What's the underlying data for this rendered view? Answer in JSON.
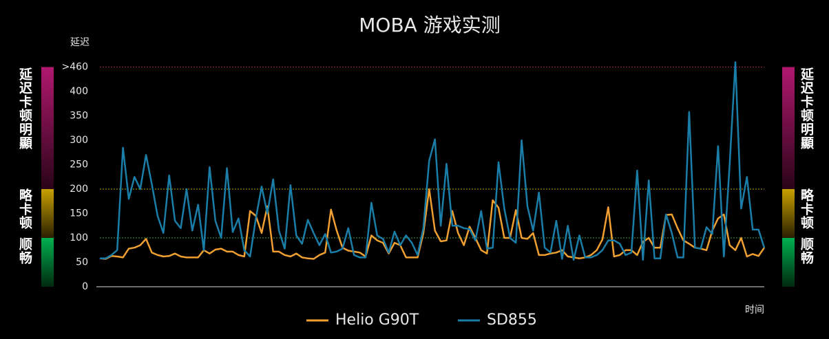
{
  "chart_data": {
    "type": "line",
    "title": "MOBA 游戏实测",
    "y_label": "延迟",
    "x_label": "时间",
    "side_labels": [
      "延迟卡顿明顯",
      "略卡顿",
      "顺畅"
    ],
    "ylim": [
      0,
      460
    ],
    "yticks": [
      0,
      50,
      100,
      150,
      200,
      250,
      300,
      350,
      400,
      {
        "value": 450,
        "label": ">460"
      }
    ],
    "series": [
      {
        "name": "Helio G90T",
        "color": "#f0a030",
        "values": [
          58,
          57,
          63,
          62,
          60,
          78,
          80,
          85,
          98,
          70,
          65,
          62,
          63,
          68,
          62,
          60,
          60,
          60,
          75,
          68,
          76,
          78,
          72,
          72,
          65,
          62,
          155,
          145,
          110,
          165,
          72,
          72,
          65,
          62,
          68,
          60,
          58,
          57,
          65,
          70,
          158,
          115,
          80,
          74,
          72,
          70,
          62,
          105,
          95,
          90,
          68,
          90,
          85,
          60,
          60,
          60,
          110,
          200,
          115,
          93,
          95,
          155,
          110,
          85,
          123,
          100,
          75,
          68,
          177,
          162,
          100,
          100,
          157,
          100,
          98,
          110,
          65,
          65,
          68,
          70,
          75,
          62,
          60,
          58,
          60,
          65,
          75,
          97,
          163,
          62,
          65,
          75,
          75,
          65,
          92,
          100,
          80,
          80,
          147,
          148,
          120,
          95,
          88,
          80,
          78,
          75,
          115,
          140,
          148,
          85,
          75,
          100,
          62,
          67,
          63,
          80
        ]
      },
      {
        "name": "SD855",
        "color": "#1a7ea8",
        "values": [
          58,
          58,
          65,
          75,
          285,
          180,
          225,
          200,
          270,
          210,
          145,
          110,
          228,
          135,
          120,
          200,
          115,
          168,
          75,
          245,
          135,
          100,
          243,
          112,
          140,
          75,
          62,
          140,
          205,
          150,
          220,
          115,
          78,
          208,
          105,
          88,
          137,
          110,
          85,
          108,
          70,
          72,
          78,
          120,
          65,
          60,
          60,
          172,
          105,
          98,
          70,
          113,
          85,
          105,
          90,
          65,
          120,
          258,
          302,
          125,
          252,
          125,
          125,
          120,
          118,
          95,
          155,
          78,
          80,
          255,
          160,
          100,
          90,
          300,
          165,
          115,
          193,
          80,
          70,
          135,
          57,
          125,
          55,
          105,
          60,
          60,
          65,
          75,
          95,
          95,
          88,
          65,
          70,
          238,
          55,
          218,
          58,
          58,
          148,
          110,
          60,
          60,
          358,
          80,
          78,
          122,
          108,
          288,
          62,
          250,
          460,
          160,
          225,
          117,
          117,
          80
        ]
      }
    ]
  }
}
